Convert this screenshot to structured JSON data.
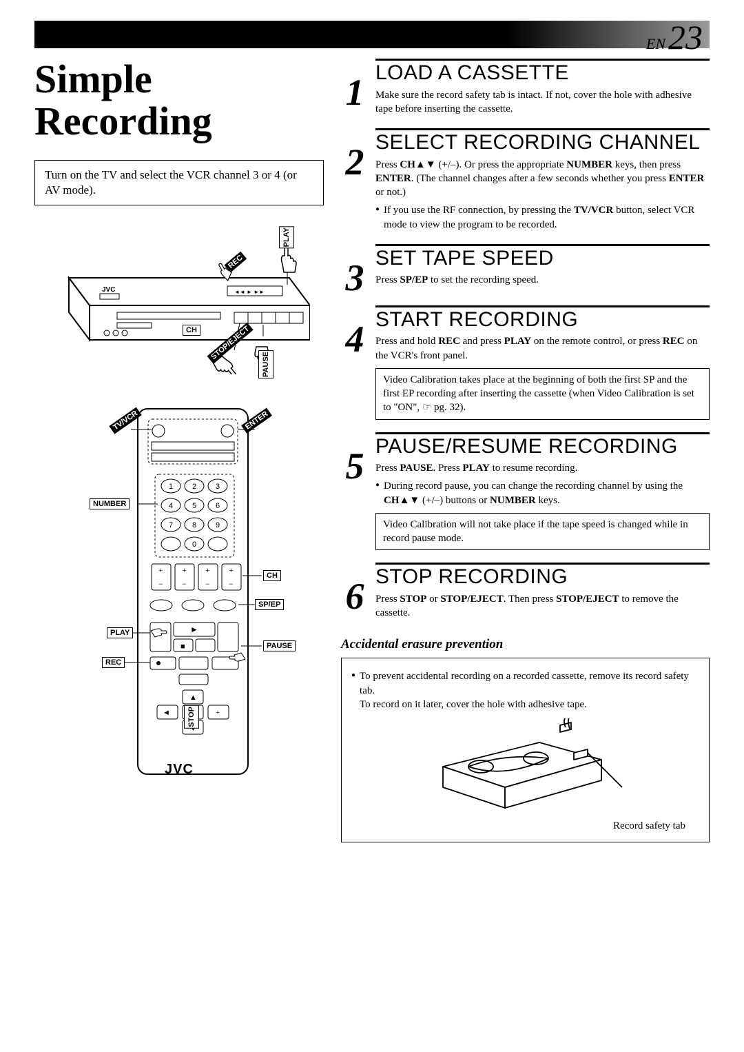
{
  "page": {
    "lang": "EN",
    "number": "23"
  },
  "title": "Simple Recording",
  "intro": "Turn on the TV and select the VCR channel 3 or 4 (or AV mode).",
  "vcr_labels": {
    "play": "PLAY",
    "rec": "REC",
    "ch": "CH",
    "pause": "PAUSE",
    "stop_eject": "STOP/EJECT"
  },
  "remote_labels": {
    "tv_vcr": "TV/VCR",
    "enter": "ENTER",
    "number": "NUMBER",
    "ch": "CH",
    "sp_ep": "SP/EP",
    "play": "PLAY",
    "pause": "PAUSE",
    "rec": "REC",
    "stop": "STOP"
  },
  "brand": "JVC",
  "steps": [
    {
      "num": "1",
      "title": "LOAD A CASSETTE",
      "text": "Make sure the record safety tab is intact. If not, cover the hole with adhesive tape before inserting the cassette."
    },
    {
      "num": "2",
      "title": "SELECT RECORDING CHANNEL",
      "text_html": "Press <b>CH▲▼</b> (+/–). Or press the appropriate <b>NUMBER</b> keys, then press <b>ENTER</b>. (The channel changes after a few seconds whether you press <b>ENTER</b> or not.)",
      "bullet_html": "If you use the RF connection, by pressing the <b>TV/VCR</b> button, select VCR mode to view the program to be recorded."
    },
    {
      "num": "3",
      "title": "SET TAPE SPEED",
      "text_html": "Press <b>SP/EP</b> to set the recording speed."
    },
    {
      "num": "4",
      "title": "START RECORDING",
      "text_html": "Press and hold <b>REC</b> and press <b>PLAY</b> on the remote control, or press <b>REC</b> on the VCR's front panel.",
      "note": "Video Calibration takes place at the beginning of both the first SP and the first EP recording after inserting the cassette (when Video Calibration is set to \"ON\", ☞ pg. 32)."
    },
    {
      "num": "5",
      "title": "PAUSE/RESUME RECORDING",
      "text_html": "Press <b>PAUSE</b>. Press <b>PLAY</b> to resume recording.",
      "bullet_html": "During record pause, you can change the recording channel by using the <b>CH▲▼</b> (+/–) buttons or <b>NUMBER</b> keys.",
      "note": "Video Calibration will not take place if the tape speed is changed while in record pause mode."
    },
    {
      "num": "6",
      "title": "STOP RECORDING",
      "text_html": "Press <b>STOP</b> or <b>STOP/EJECT</b>. Then press <b>STOP/EJECT</b> to remove the cassette."
    }
  ],
  "erasure": {
    "heading": "Accidental erasure prevention",
    "bullet": "To prevent accidental recording on a recorded cassette, remove its record safety tab.\nTo record on it later, cover the hole with adhesive tape.",
    "tab_label": "Record safety tab"
  },
  "colors": {
    "text": "#000000",
    "bg": "#ffffff",
    "bar_dark": "#000000",
    "bar_light": "#999999"
  }
}
